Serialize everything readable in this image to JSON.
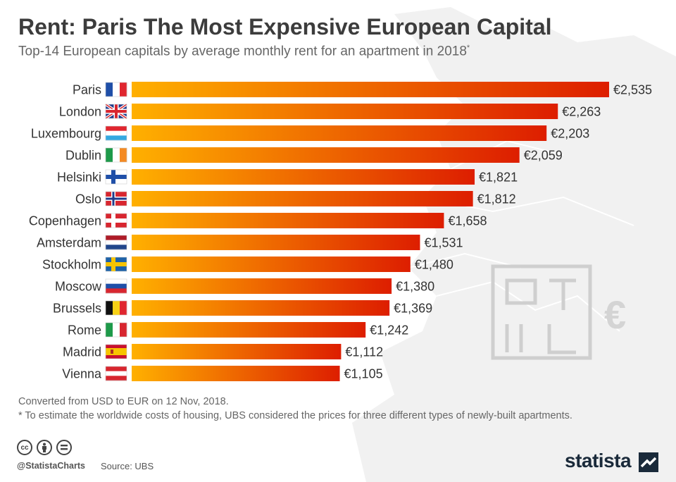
{
  "title": "Rent: Paris The Most Expensive European Capital",
  "subtitle": "Top-14 European capitals by average monthly rent for an apartment in 2018",
  "subtitle_mark": "*",
  "notes": {
    "line1": "Converted from USD to EUR on 12 Nov, 2018.",
    "line2": "* To estimate the worldwide costs of housing, UBS considered the prices for three different types of newly-built apartments."
  },
  "footer": {
    "handle": "@StatistaCharts",
    "source": "Source: UBS",
    "brand": "statista"
  },
  "license_icons": [
    "cc-icon",
    "attribution-icon",
    "no-derivatives-icon"
  ],
  "colors": {
    "bar_start": "#ffb000",
    "bar_end": "#dd1e00",
    "text": "#333333"
  },
  "chart_data": {
    "type": "bar",
    "orientation": "horizontal",
    "currency_prefix": "€",
    "categories": [
      "Paris",
      "London",
      "Luxembourg",
      "Dublin",
      "Helsinki",
      "Oslo",
      "Copenhagen",
      "Amsterdam",
      "Stockholm",
      "Moscow",
      "Brussels",
      "Rome",
      "Madrid",
      "Vienna"
    ],
    "values": [
      2535,
      2263,
      2203,
      2059,
      1821,
      1812,
      1658,
      1531,
      1480,
      1380,
      1369,
      1242,
      1112,
      1105
    ],
    "value_labels": [
      "€2,535",
      "€2,263",
      "€2,203",
      "€2,059",
      "€1,821",
      "€1,812",
      "€1,658",
      "€1,531",
      "€1,480",
      "€1,380",
      "€1,369",
      "€1,242",
      "€1,112",
      "€1,105"
    ],
    "flags": [
      "fr",
      "gb",
      "lu",
      "ie",
      "fi",
      "no",
      "dk",
      "nl",
      "se",
      "ru",
      "be",
      "it",
      "es",
      "at"
    ],
    "xlim": [
      0,
      2535
    ]
  }
}
